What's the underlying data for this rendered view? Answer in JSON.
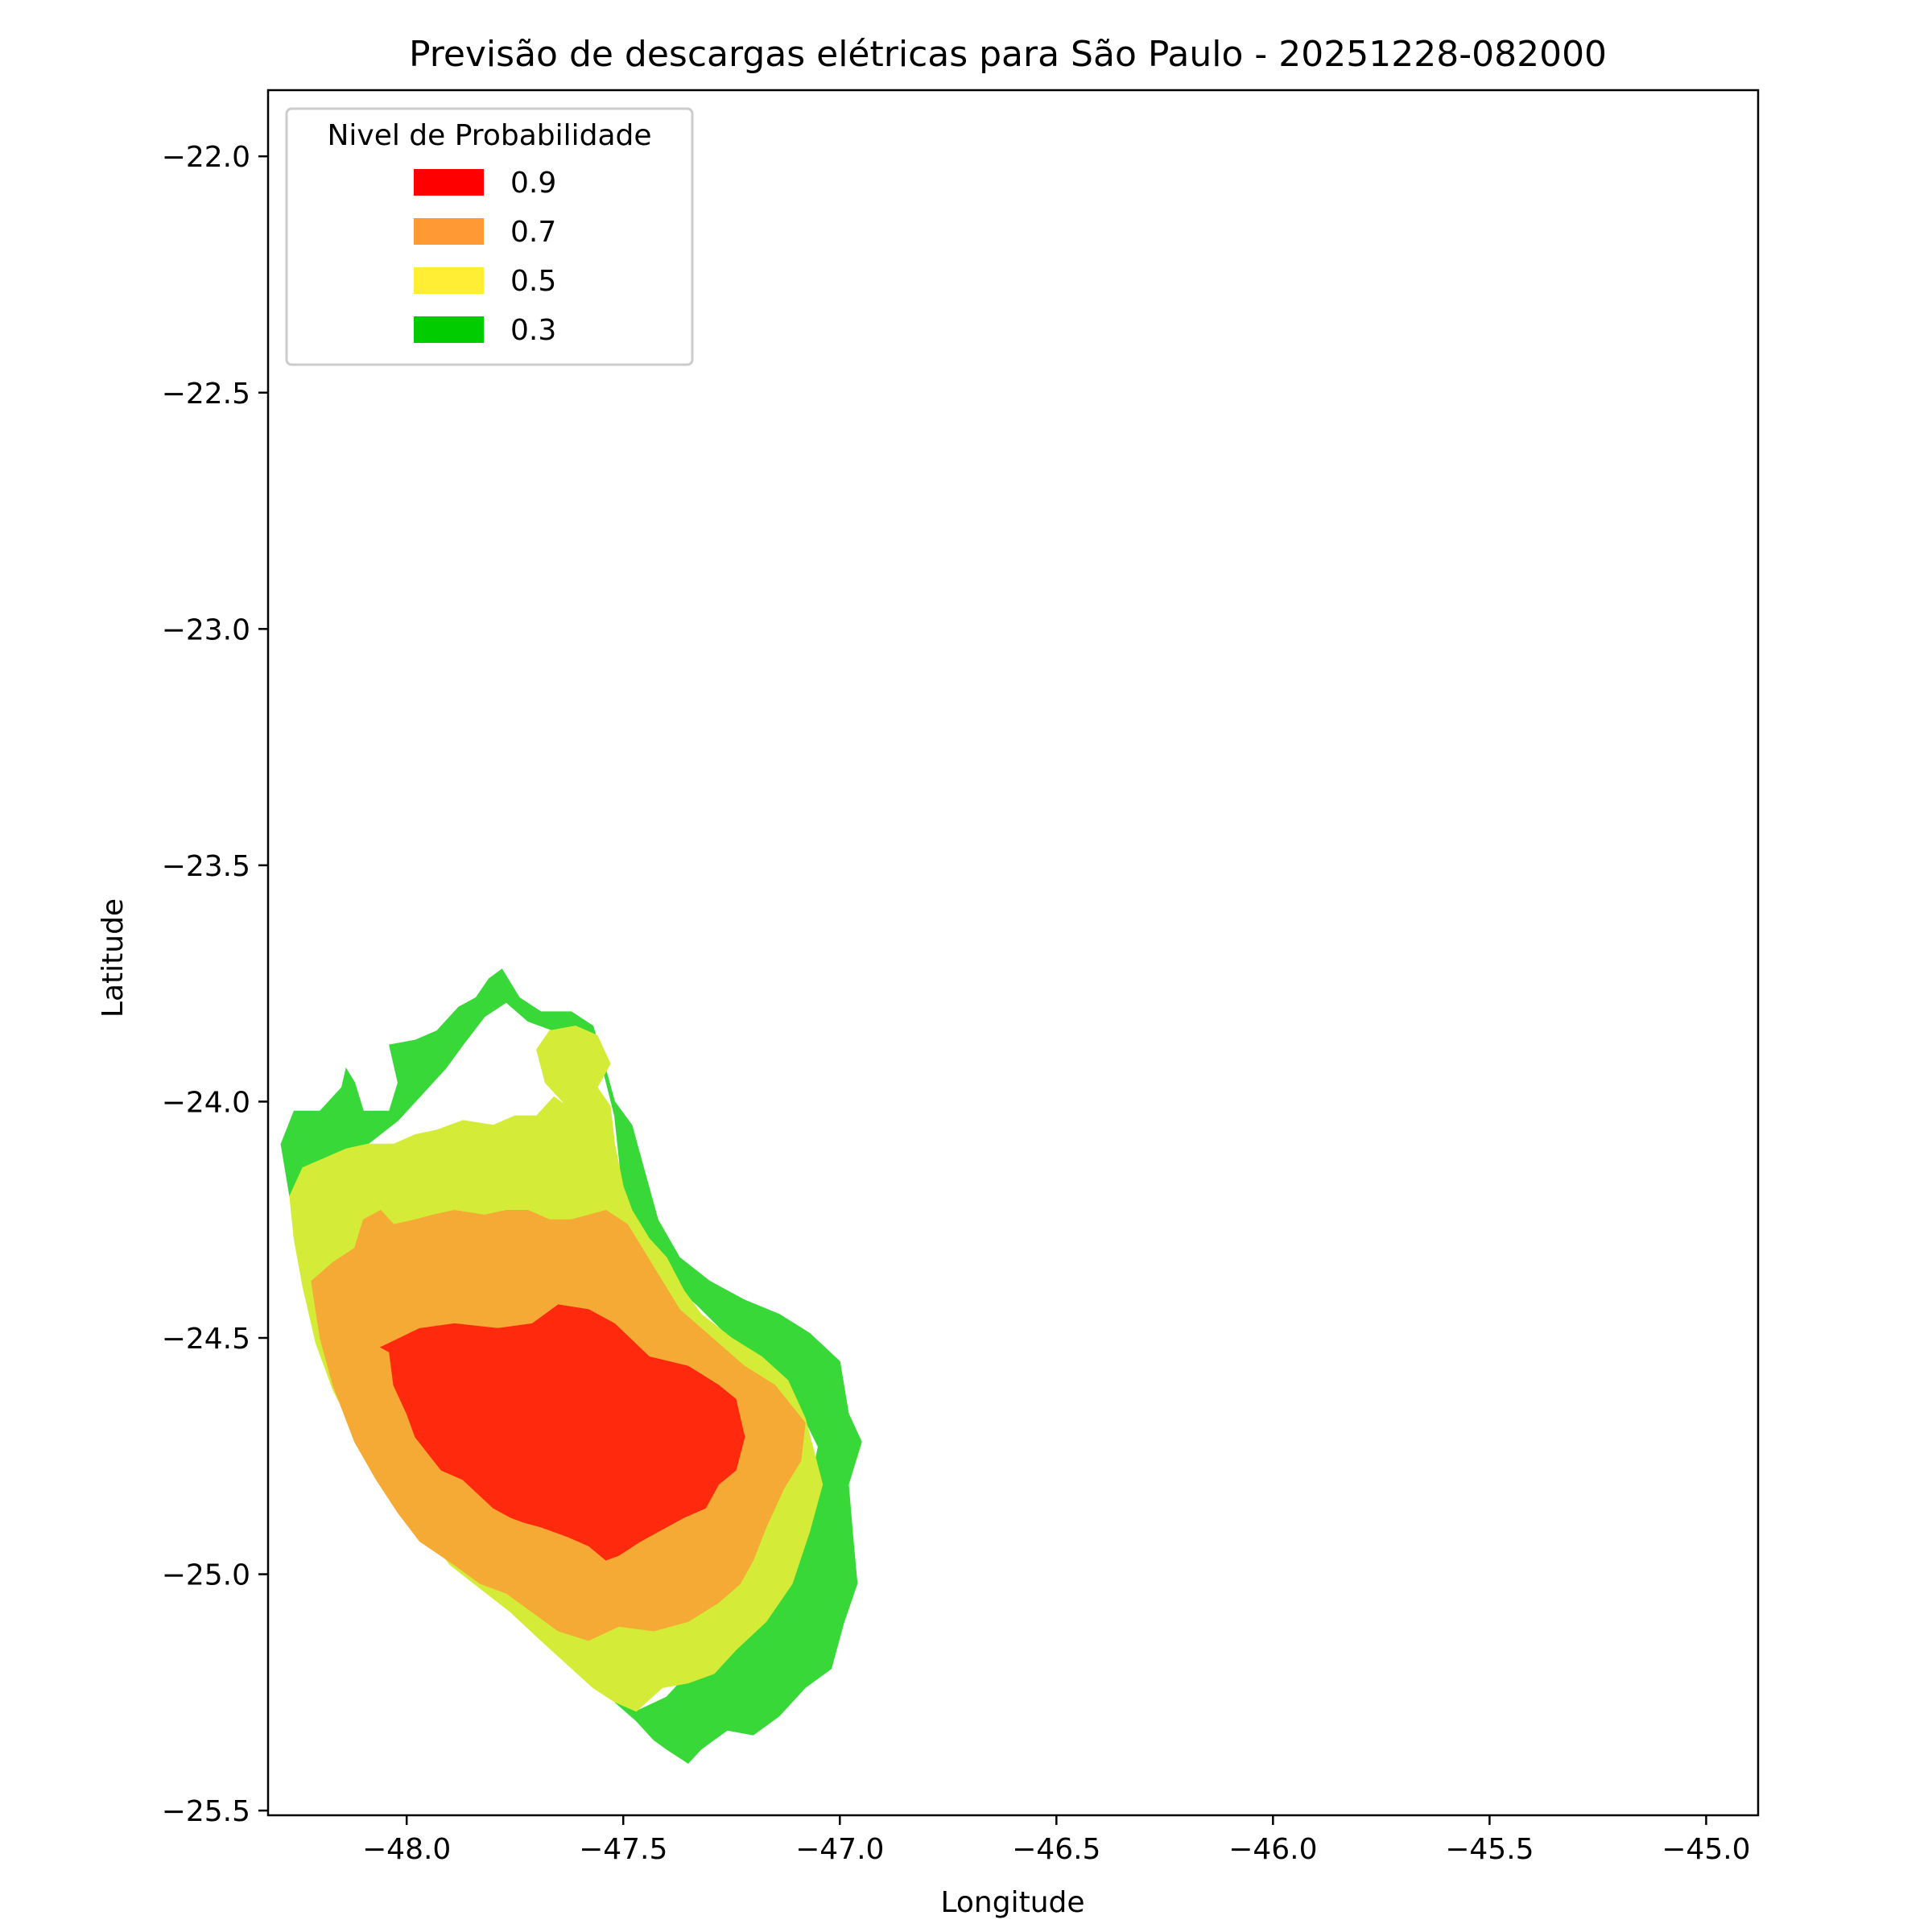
{
  "chart_data": {
    "type": "contour-map",
    "title": "Previsão de descargas elétricas para São Paulo - 20251228-082000",
    "xlabel": "Longitude",
    "ylabel": "Latitude",
    "xlim": [
      -48.32,
      -44.88
    ],
    "ylim": [
      -25.51,
      -21.86
    ],
    "x_ticks": [
      "−48.0",
      "−47.5",
      "−47.0",
      "−46.5",
      "−46.0",
      "−45.5",
      "−45.0"
    ],
    "y_ticks": [
      "−22.0",
      "−22.5",
      "−23.0",
      "−23.5",
      "−24.0",
      "−24.5",
      "−25.0",
      "−25.5"
    ],
    "grid": false,
    "legend": {
      "title": "Nivel de Probabilidade",
      "placement": "top-left",
      "entries": [
        {
          "label": "0.9",
          "color": "#ff0000"
        },
        {
          "label": "0.7",
          "color": "#ff9933"
        },
        {
          "label": "0.5",
          "color": "#ffee33"
        },
        {
          "label": "0.3",
          "color": "#00cc00"
        }
      ]
    },
    "levels": [
      {
        "level": "0.3",
        "color": "#38d838",
        "polygon": [
          [
            -48.29,
            -24.09
          ],
          [
            -48.26,
            -24.02
          ],
          [
            -48.2,
            -24.02
          ],
          [
            -48.15,
            -23.97
          ],
          [
            -48.14,
            -23.93
          ],
          [
            -48.12,
            -23.96
          ],
          [
            -48.1,
            -24.02
          ],
          [
            -48.04,
            -24.02
          ],
          [
            -48.02,
            -23.96
          ],
          [
            -48.04,
            -23.88
          ],
          [
            -47.98,
            -23.87
          ],
          [
            -47.93,
            -23.85
          ],
          [
            -47.88,
            -23.8
          ],
          [
            -47.84,
            -23.78
          ],
          [
            -47.81,
            -23.74
          ],
          [
            -47.78,
            -23.72
          ],
          [
            -47.74,
            -23.78
          ],
          [
            -47.69,
            -23.81
          ],
          [
            -47.62,
            -23.81
          ],
          [
            -47.57,
            -23.84
          ],
          [
            -47.55,
            -23.9
          ],
          [
            -47.52,
            -24.0
          ],
          [
            -47.48,
            -24.05
          ],
          [
            -47.45,
            -24.15
          ],
          [
            -47.42,
            -24.25
          ],
          [
            -47.37,
            -24.33
          ],
          [
            -47.3,
            -24.38
          ],
          [
            -47.22,
            -24.42
          ],
          [
            -47.14,
            -24.45
          ],
          [
            -47.07,
            -24.49
          ],
          [
            -47.0,
            -24.55
          ],
          [
            -46.98,
            -24.66
          ],
          [
            -46.95,
            -24.72
          ],
          [
            -46.98,
            -24.81
          ],
          [
            -46.97,
            -24.92
          ],
          [
            -46.96,
            -25.02
          ],
          [
            -46.99,
            -25.1
          ],
          [
            -47.02,
            -25.2
          ],
          [
            -47.08,
            -25.24
          ],
          [
            -47.14,
            -25.3
          ],
          [
            -47.2,
            -25.34
          ],
          [
            -47.26,
            -25.33
          ],
          [
            -47.32,
            -25.37
          ],
          [
            -47.35,
            -25.4
          ],
          [
            -47.4,
            -25.37
          ],
          [
            -47.43,
            -25.35
          ],
          [
            -47.47,
            -25.31
          ],
          [
            -47.52,
            -25.27
          ],
          [
            -47.47,
            -25.29
          ],
          [
            -47.4,
            -25.26
          ],
          [
            -47.32,
            -25.18
          ],
          [
            -47.26,
            -25.08
          ],
          [
            -47.15,
            -24.98
          ],
          [
            -47.08,
            -24.87
          ],
          [
            -47.05,
            -24.73
          ],
          [
            -47.12,
            -24.6
          ],
          [
            -47.22,
            -24.53
          ],
          [
            -47.33,
            -24.43
          ],
          [
            -47.43,
            -24.35
          ],
          [
            -47.5,
            -24.2
          ],
          [
            -47.52,
            -24.03
          ],
          [
            -47.55,
            -23.92
          ],
          [
            -47.58,
            -23.88
          ],
          [
            -47.66,
            -23.85
          ],
          [
            -47.72,
            -23.83
          ],
          [
            -47.77,
            -23.79
          ],
          [
            -47.82,
            -23.82
          ],
          [
            -47.87,
            -23.88
          ],
          [
            -47.91,
            -23.93
          ],
          [
            -47.96,
            -23.98
          ],
          [
            -48.02,
            -24.04
          ],
          [
            -48.09,
            -24.09
          ],
          [
            -48.14,
            -24.1
          ],
          [
            -48.19,
            -24.12
          ],
          [
            -48.24,
            -24.16
          ],
          [
            -48.27,
            -24.2
          ]
        ]
      },
      {
        "level": "0.5",
        "color": "#d4ec38",
        "polygon": [
          [
            -48.27,
            -24.2
          ],
          [
            -48.24,
            -24.14
          ],
          [
            -48.19,
            -24.12
          ],
          [
            -48.14,
            -24.1
          ],
          [
            -48.09,
            -24.09
          ],
          [
            -48.03,
            -24.09
          ],
          [
            -47.98,
            -24.07
          ],
          [
            -47.93,
            -24.06
          ],
          [
            -47.87,
            -24.04
          ],
          [
            -47.8,
            -24.05
          ],
          [
            -47.75,
            -24.03
          ],
          [
            -47.7,
            -24.03
          ],
          [
            -47.66,
            -23.99
          ],
          [
            -47.63,
            -24.01
          ],
          [
            -47.68,
            -23.96
          ],
          [
            -47.7,
            -23.89
          ],
          [
            -47.67,
            -23.85
          ],
          [
            -47.61,
            -23.84
          ],
          [
            -47.56,
            -23.86
          ],
          [
            -47.53,
            -23.92
          ],
          [
            -47.56,
            -23.97
          ],
          [
            -47.53,
            -24.01
          ],
          [
            -47.52,
            -24.09
          ],
          [
            -47.5,
            -24.18
          ],
          [
            -47.48,
            -24.23
          ],
          [
            -47.44,
            -24.29
          ],
          [
            -47.4,
            -24.33
          ],
          [
            -47.36,
            -24.4
          ],
          [
            -47.32,
            -24.45
          ],
          [
            -47.25,
            -24.5
          ],
          [
            -47.18,
            -24.54
          ],
          [
            -47.12,
            -24.59
          ],
          [
            -47.08,
            -24.67
          ],
          [
            -47.06,
            -24.74
          ],
          [
            -47.04,
            -24.81
          ],
          [
            -47.07,
            -24.91
          ],
          [
            -47.11,
            -25.02
          ],
          [
            -47.17,
            -25.1
          ],
          [
            -47.24,
            -25.16
          ],
          [
            -47.29,
            -25.21
          ],
          [
            -47.35,
            -25.23
          ],
          [
            -47.41,
            -25.24
          ],
          [
            -47.47,
            -25.29
          ],
          [
            -47.52,
            -25.27
          ],
          [
            -47.57,
            -25.24
          ],
          [
            -47.63,
            -25.19
          ],
          [
            -47.69,
            -25.14
          ],
          [
            -47.76,
            -25.08
          ],
          [
            -47.83,
            -25.03
          ],
          [
            -47.9,
            -24.98
          ],
          [
            -47.95,
            -24.92
          ],
          [
            -48.01,
            -24.86
          ],
          [
            -48.07,
            -24.78
          ],
          [
            -48.12,
            -24.7
          ],
          [
            -48.17,
            -24.61
          ],
          [
            -48.21,
            -24.51
          ],
          [
            -48.24,
            -24.39
          ],
          [
            -48.26,
            -24.29
          ]
        ]
      },
      {
        "level": "0.7",
        "color": "#f5aa35",
        "polygon": [
          [
            -48.22,
            -24.38
          ],
          [
            -48.17,
            -24.34
          ],
          [
            -48.12,
            -24.31
          ],
          [
            -48.1,
            -24.25
          ],
          [
            -48.06,
            -24.23
          ],
          [
            -48.03,
            -24.26
          ],
          [
            -47.98,
            -24.25
          ],
          [
            -47.94,
            -24.24
          ],
          [
            -47.89,
            -24.23
          ],
          [
            -47.82,
            -24.24
          ],
          [
            -47.77,
            -24.23
          ],
          [
            -47.72,
            -24.23
          ],
          [
            -47.67,
            -24.25
          ],
          [
            -47.62,
            -24.25
          ],
          [
            -47.54,
            -24.23
          ],
          [
            -47.49,
            -24.26
          ],
          [
            -47.45,
            -24.32
          ],
          [
            -47.41,
            -24.38
          ],
          [
            -47.37,
            -24.44
          ],
          [
            -47.32,
            -24.48
          ],
          [
            -47.27,
            -24.52
          ],
          [
            -47.22,
            -24.56
          ],
          [
            -47.15,
            -24.6
          ],
          [
            -47.08,
            -24.68
          ],
          [
            -47.09,
            -24.76
          ],
          [
            -47.13,
            -24.82
          ],
          [
            -47.17,
            -24.9
          ],
          [
            -47.2,
            -24.97
          ],
          [
            -47.23,
            -25.02
          ],
          [
            -47.28,
            -25.06
          ],
          [
            -47.35,
            -25.1
          ],
          [
            -47.43,
            -25.12
          ],
          [
            -47.51,
            -25.11
          ],
          [
            -47.58,
            -25.14
          ],
          [
            -47.65,
            -25.12
          ],
          [
            -47.71,
            -25.08
          ],
          [
            -47.77,
            -25.04
          ],
          [
            -47.83,
            -25.02
          ],
          [
            -47.89,
            -24.98
          ],
          [
            -47.97,
            -24.93
          ],
          [
            -48.02,
            -24.87
          ],
          [
            -48.07,
            -24.8
          ],
          [
            -48.12,
            -24.72
          ],
          [
            -48.17,
            -24.6
          ],
          [
            -48.2,
            -24.5
          ]
        ]
      },
      {
        "level": "0.9",
        "color": "#ff2a0d",
        "polygon": [
          [
            -48.06,
            -24.52
          ],
          [
            -47.97,
            -24.48
          ],
          [
            -47.89,
            -24.47
          ],
          [
            -47.79,
            -24.48
          ],
          [
            -47.71,
            -24.47
          ],
          [
            -47.65,
            -24.43
          ],
          [
            -47.58,
            -24.44
          ],
          [
            -47.52,
            -24.47
          ],
          [
            -47.44,
            -24.54
          ],
          [
            -47.35,
            -24.56
          ],
          [
            -47.28,
            -24.6
          ],
          [
            -47.24,
            -24.63
          ],
          [
            -47.22,
            -24.71
          ],
          [
            -47.24,
            -24.78
          ],
          [
            -47.28,
            -24.81
          ],
          [
            -47.31,
            -24.86
          ],
          [
            -47.36,
            -24.88
          ],
          [
            -47.42,
            -24.91
          ],
          [
            -47.46,
            -24.93
          ],
          [
            -47.51,
            -24.96
          ],
          [
            -47.54,
            -24.97
          ],
          [
            -47.58,
            -24.94
          ],
          [
            -47.63,
            -24.92
          ],
          [
            -47.69,
            -24.9
          ],
          [
            -47.73,
            -24.89
          ],
          [
            -47.76,
            -24.88
          ],
          [
            -47.8,
            -24.86
          ],
          [
            -47.87,
            -24.8
          ],
          [
            -47.92,
            -24.78
          ],
          [
            -47.98,
            -24.71
          ],
          [
            -48.0,
            -24.66
          ],
          [
            -48.03,
            -24.6
          ],
          [
            -48.04,
            -24.53
          ]
        ]
      }
    ]
  }
}
